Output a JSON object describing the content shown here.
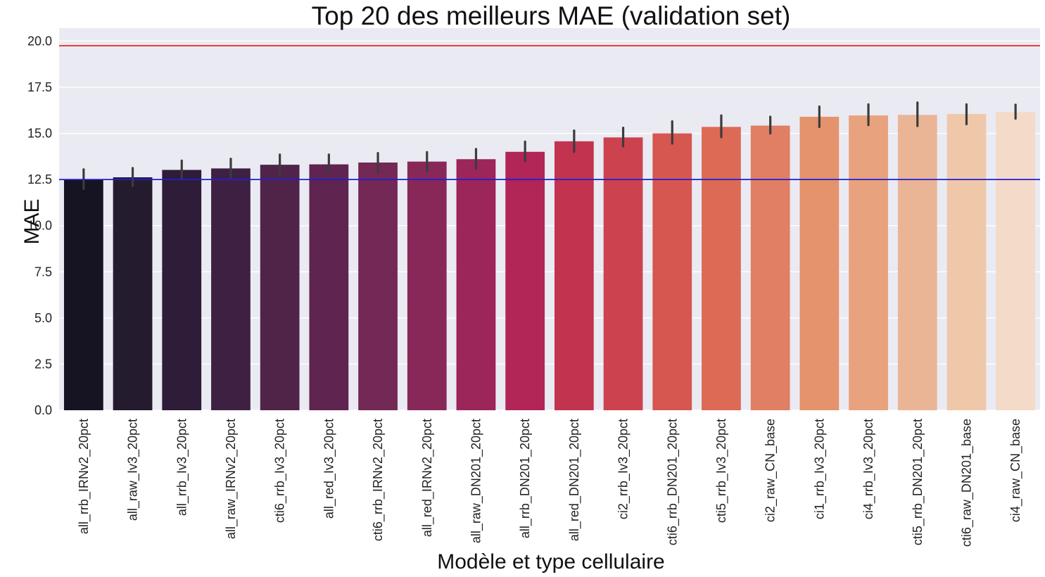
{
  "chart_data": {
    "type": "bar",
    "title": "Top 20 des meilleurs MAE (validation set)",
    "xlabel": "Modèle et type cellulaire",
    "ylabel": "MAE",
    "ylim": [
      0,
      20.7
    ],
    "yticks": [
      "0.0",
      "2.5",
      "5.0",
      "7.5",
      "10.0",
      "12.5",
      "15.0",
      "17.5",
      "20.0"
    ],
    "grid": true,
    "categories": [
      "all_rrb_IRNv2_20pct",
      "all_raw_Iv3_20pct",
      "all_rrb_Iv3_20pct",
      "all_raw_IRNv2_20pct",
      "cti6_rrb_Iv3_20pct",
      "all_red_Iv3_20pct",
      "cti6_rrb_IRNv2_20pct",
      "all_red_IRNv2_20pct",
      "all_raw_DN201_20pct",
      "all_rrb_DN201_20pct",
      "all_red_DN201_20pct",
      "ci2_rrb_Iv3_20pct",
      "cti6_rrb_DN201_20pct",
      "cti5_rrb_Iv3_20pct",
      "ci2_raw_CN_base",
      "ci1_rrb_Iv3_20pct",
      "ci4_rrb_Iv3_20pct",
      "cti5_rrb_DN201_20pct",
      "cti6_raw_DN201_base",
      "ci4_raw_CN_base"
    ],
    "values": [
      12.52,
      12.62,
      13.02,
      13.1,
      13.3,
      13.32,
      13.42,
      13.47,
      13.6,
      14.0,
      14.57,
      14.78,
      15.0,
      15.35,
      15.42,
      15.9,
      15.97,
      16.0,
      16.05,
      16.15
    ],
    "error_low": [
      12.0,
      12.15,
      12.55,
      12.6,
      12.8,
      12.85,
      12.9,
      12.95,
      13.1,
      13.5,
      14.0,
      14.3,
      14.45,
      14.8,
      15.0,
      15.35,
      15.45,
      15.4,
      15.5,
      15.8
    ],
    "error_high": [
      13.05,
      13.12,
      13.52,
      13.62,
      13.85,
      13.85,
      13.93,
      13.98,
      14.15,
      14.55,
      15.15,
      15.3,
      15.65,
      15.97,
      15.9,
      16.45,
      16.57,
      16.67,
      16.57,
      16.55
    ],
    "colors": [
      "#161322",
      "#241b2f",
      "#2e1c38",
      "#3e2142",
      "#502449",
      "#5f244f",
      "#732855",
      "#872859",
      "#9c2559",
      "#b12557",
      "#c2334f",
      "#cd424f",
      "#d65750",
      "#dc6a55",
      "#e07f63",
      "#e5936d",
      "#e8a27e",
      "#eab595",
      "#efc8aa",
      "#f4dac8"
    ],
    "reference_lines": [
      {
        "value": 19.75,
        "color": "#e8362f"
      },
      {
        "value": 12.5,
        "color": "#1d1fd6"
      }
    ],
    "plot_background": "#eaeaf2",
    "error_bar_color": "#3c3c3c"
  }
}
